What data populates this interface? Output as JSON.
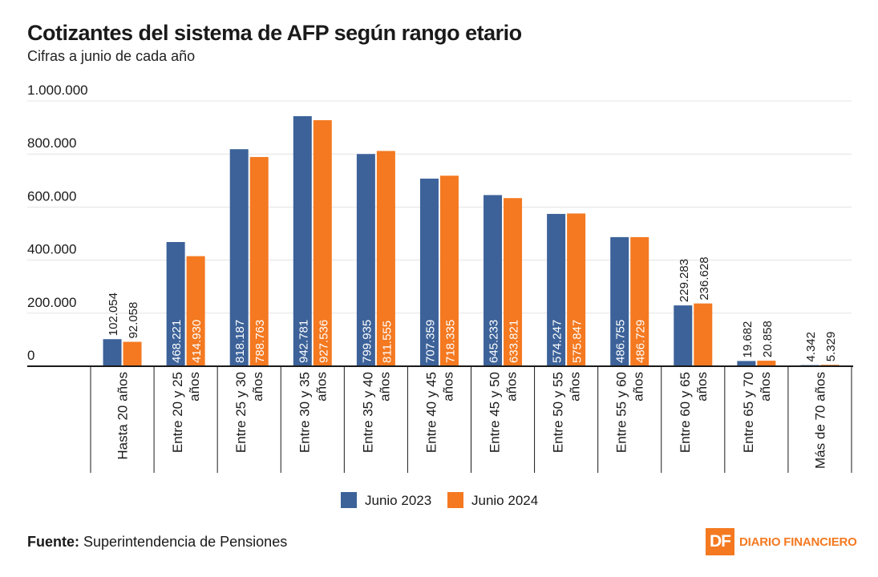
{
  "title": "Cotizantes del sistema de AFP según rango etario",
  "subtitle": "Cifras a junio de cada año",
  "source_label": "Fuente:",
  "source_text": "Superintendencia de Pensiones",
  "logo": {
    "mark": "DF",
    "word1": "DIARIO",
    "word2": "FINANCIERO"
  },
  "colors": {
    "series1": "#3c6299",
    "series2": "#f47920",
    "grid": "#e3e3e3",
    "axis": "#1a1a1a"
  },
  "chart_data": {
    "type": "bar",
    "title": "Cotizantes del sistema de AFP según rango etario",
    "xlabel": "",
    "ylabel": "",
    "ylim": [
      0,
      1000000
    ],
    "yticks": [
      0,
      200000,
      400000,
      600000,
      800000,
      1000000
    ],
    "ytick_labels": [
      "0",
      "200.000",
      "400.000",
      "600.000",
      "800.000",
      "1.000.000"
    ],
    "grid": true,
    "legend_position": "bottom-center",
    "categories": [
      [
        "Hasta 20 años"
      ],
      [
        "Entre 20 y 25",
        "años"
      ],
      [
        "Entre 25 y 30",
        "años"
      ],
      [
        "Entre 30 y 35",
        "años"
      ],
      [
        "Entre 35 y 40",
        "años"
      ],
      [
        "Entre 40 y 45",
        "años"
      ],
      [
        "Entre 45 y 50",
        "años"
      ],
      [
        "Entre 50 y 55",
        "años"
      ],
      [
        "Entre 55 y 60",
        "años"
      ],
      [
        "Entre 60 y 65",
        "años"
      ],
      [
        "Entre 65 y 70",
        "años"
      ],
      [
        "Más de 70 años"
      ]
    ],
    "series": [
      {
        "name": "Junio 2023",
        "values": [
          102054,
          468221,
          818187,
          942781,
          799935,
          707359,
          645233,
          574247,
          486755,
          229283,
          19682,
          4342
        ],
        "labels": [
          "102.054",
          "468.221",
          "818.187",
          "942.781",
          "799.935",
          "707.359",
          "645.233",
          "574.247",
          "486.755",
          "229.283",
          "19.682",
          "4.342"
        ]
      },
      {
        "name": "Junio 2024",
        "values": [
          92058,
          414930,
          788763,
          927536,
          811555,
          718335,
          633821,
          575847,
          486729,
          236628,
          20858,
          5329
        ],
        "labels": [
          "92.058",
          "414.930",
          "788.763",
          "927.536",
          "811.555",
          "718.335",
          "633.821",
          "575.847",
          "486.729",
          "236.628",
          "20.858",
          "5.329"
        ]
      }
    ]
  }
}
